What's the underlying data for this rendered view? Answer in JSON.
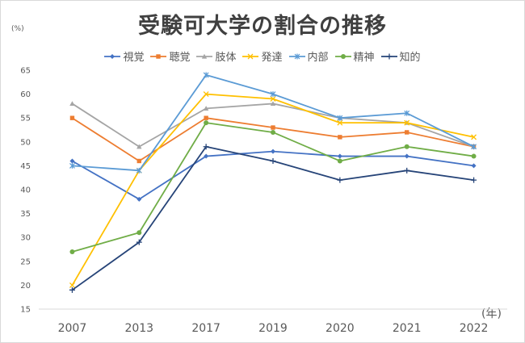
{
  "chart_data": {
    "type": "line",
    "title": "受験可大学の割合の推移",
    "ylabel": "(%)",
    "xlabel": "(年)",
    "categories": [
      "2007",
      "2013",
      "2017",
      "2019",
      "2020",
      "2021",
      "2022"
    ],
    "ylim": [
      15,
      65
    ],
    "yticks": [
      15,
      20,
      25,
      30,
      35,
      40,
      45,
      50,
      55,
      60,
      65
    ],
    "grid": false,
    "legend": "top",
    "series": [
      {
        "name": "視覚",
        "color": "#4472c4",
        "marker": "diamond",
        "values": [
          46,
          38,
          47,
          48,
          47,
          47,
          45
        ]
      },
      {
        "name": "聴覚",
        "color": "#ed7d31",
        "marker": "square",
        "values": [
          55,
          46,
          55,
          53,
          51,
          52,
          49
        ]
      },
      {
        "name": "肢体",
        "color": "#a5a5a5",
        "marker": "triangle",
        "values": [
          58,
          49,
          57,
          58,
          55,
          54,
          49
        ]
      },
      {
        "name": "発達",
        "color": "#ffc000",
        "marker": "x",
        "values": [
          20,
          44,
          60,
          59,
          54,
          54,
          51
        ]
      },
      {
        "name": "内部",
        "color": "#5b9bd5",
        "marker": "star",
        "values": [
          45,
          44,
          64,
          60,
          55,
          56,
          49
        ]
      },
      {
        "name": "精神",
        "color": "#70ad47",
        "marker": "circle",
        "values": [
          27,
          31,
          54,
          52,
          46,
          49,
          47
        ]
      },
      {
        "name": "知的",
        "color": "#264478",
        "marker": "plus",
        "values": [
          19,
          29,
          49,
          46,
          42,
          44,
          42
        ]
      }
    ]
  }
}
